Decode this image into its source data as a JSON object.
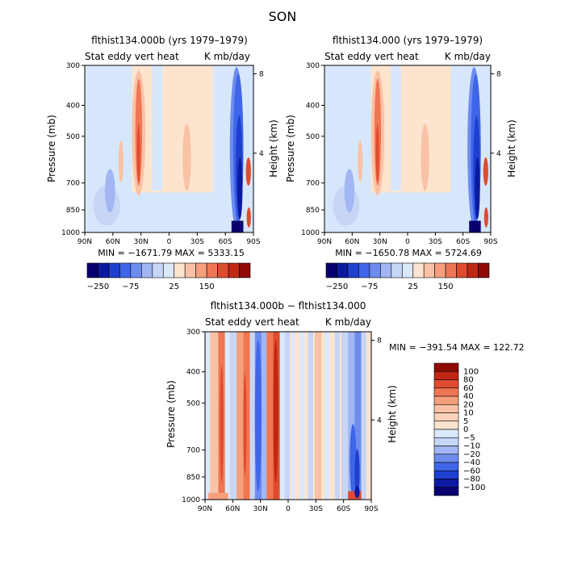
{
  "figure_title": "SON",
  "chart_data": [
    {
      "type": "heatmap",
      "title": "flthist134.000b (yrs 1979–1979)",
      "left_subtitle": "Stat eddy vert heat",
      "right_subtitle": "K mb/day",
      "ylabel": "Pressure (mb)",
      "y2label": "Height (km)",
      "x_ticks": [
        "90N",
        "60N",
        "30N",
        "0",
        "30S",
        "60S",
        "90S"
      ],
      "y_ticks": [
        300,
        400,
        500,
        700,
        850,
        1000
      ],
      "y2_ticks": [
        8,
        4
      ],
      "stats": "MIN = −1671.79   MAX = 5333.15",
      "min": -1671.79,
      "max": 5333.15,
      "colorbar_labels": [
        "−250",
        "−75",
        "25",
        "150"
      ],
      "colorbar_orientation": "horizontal"
    },
    {
      "type": "heatmap",
      "title": "flthist134.000 (yrs 1979–1979)",
      "left_subtitle": "Stat eddy vert heat",
      "right_subtitle": "K mb/day",
      "ylabel": "Pressure (mb)",
      "y2label": "Height (km)",
      "x_ticks": [
        "90N",
        "60N",
        "30N",
        "0",
        "30S",
        "60S",
        "90S"
      ],
      "y_ticks": [
        300,
        400,
        500,
        700,
        850,
        1000
      ],
      "y2_ticks": [
        8,
        4
      ],
      "stats": "MIN = −1650.78   MAX = 5724.69",
      "min": -1650.78,
      "max": 5724.69,
      "colorbar_labels": [
        "−250",
        "−75",
        "25",
        "150"
      ],
      "colorbar_orientation": "horizontal"
    },
    {
      "type": "heatmap",
      "title": "flthist134.000b − flthist134.000",
      "left_subtitle": "Stat eddy vert heat",
      "right_subtitle": "K mb/day",
      "ylabel": "Pressure (mb)",
      "y2label": "Height (km)",
      "x_ticks": [
        "90N",
        "60N",
        "30N",
        "0",
        "30S",
        "60S",
        "90S"
      ],
      "y_ticks": [
        300,
        400,
        500,
        700,
        850,
        1000
      ],
      "y2_ticks": [
        8,
        4
      ],
      "stats": "MIN = −391.54   MAX = 122.72",
      "min": -391.54,
      "max": 122.72,
      "colorbar_labels": [
        "100",
        "80",
        "60",
        "40",
        "20",
        "10",
        "5",
        "0",
        "−5",
        "−10",
        "−20",
        "−40",
        "−60",
        "−80",
        "−100"
      ],
      "colorbar_orientation": "vertical"
    }
  ],
  "colors": {
    "levels": [
      "#08006e",
      "#0c1aa0",
      "#1f3fcf",
      "#3f66e8",
      "#6d8cee",
      "#a1b6f2",
      "#c7d6f6",
      "#dce9fb",
      "#fde4cf",
      "#f9c2a6",
      "#f59f7d",
      "#ef7654",
      "#df4b2e",
      "#bf2714",
      "#8e0a05"
    ],
    "orange_pale": "#fde4cf",
    "blue_pale": "#d7e7fb"
  }
}
